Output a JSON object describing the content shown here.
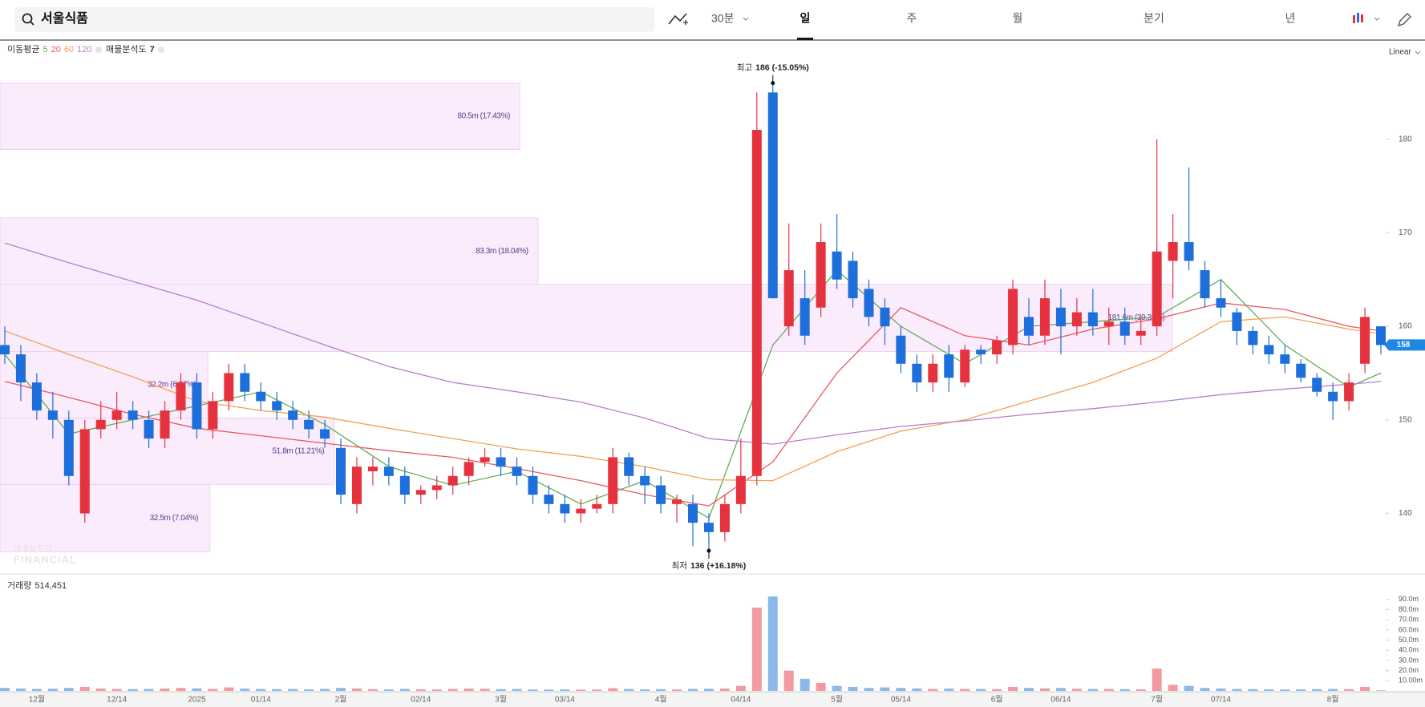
{
  "toolbar": {
    "search": "서울식품",
    "interval": "30분",
    "periods": [
      "일",
      "주",
      "월",
      "분기",
      "년"
    ],
    "active": "일"
  },
  "chart_data": [
    {
      "type": "candlestick",
      "ma_title": "이동평균",
      "profile_title": "매물분석도",
      "profile_count": 7,
      "scale_label": "Linear",
      "up_color": "#e5323e",
      "down_color": "#1e6fd9",
      "ylim": [
        133.7,
        190.6
      ],
      "yticks": [
        140,
        150,
        160,
        170,
        180
      ],
      "open": [
        158,
        157,
        154,
        151,
        150,
        140,
        149,
        150,
        151,
        150,
        148,
        151,
        154,
        149,
        152,
        155,
        153,
        152,
        151,
        150,
        149,
        147,
        141,
        144.5,
        145,
        144,
        142,
        142.5,
        143,
        144,
        145.5,
        146,
        145,
        144,
        142,
        141,
        140,
        140.5,
        141,
        146,
        144,
        143,
        141,
        141,
        139,
        138,
        141,
        144,
        185,
        160,
        163,
        162,
        168,
        167,
        164,
        162,
        159,
        156,
        154,
        157,
        154,
        157.5,
        157,
        158,
        161,
        159,
        162,
        160,
        161.5,
        160,
        160.5,
        159,
        160,
        167,
        169,
        166,
        163,
        161.5,
        159.5,
        158,
        157,
        156,
        154.5,
        153,
        152,
        156,
        160
      ],
      "high": [
        160,
        158,
        155,
        153,
        151,
        150,
        152,
        153,
        152,
        151,
        152,
        155,
        155,
        153,
        156,
        156,
        154,
        153,
        152,
        151,
        150,
        148,
        146,
        146,
        146,
        145,
        143,
        144,
        145,
        146,
        147,
        147,
        146,
        145,
        143,
        142,
        141.5,
        142,
        147,
        146.5,
        145,
        144,
        142,
        142,
        140,
        142,
        148,
        185,
        186,
        171,
        166,
        171,
        172,
        168,
        165,
        163,
        160,
        157,
        157,
        158,
        158,
        158,
        159,
        165,
        163,
        165,
        164,
        163,
        164,
        162,
        162,
        161,
        180,
        172,
        177,
        167,
        165,
        162,
        160,
        159,
        158,
        156.5,
        155,
        154,
        155,
        162,
        160
      ],
      "low": [
        156,
        152,
        150,
        148,
        143,
        139,
        148,
        149,
        149,
        147,
        147,
        150,
        148,
        148,
        151,
        152,
        151,
        150,
        149,
        148,
        147,
        141,
        140,
        143,
        143,
        141,
        141,
        141.5,
        142,
        143,
        145,
        144,
        143,
        141,
        140,
        139,
        139,
        140,
        140,
        143,
        141,
        140,
        139,
        136.5,
        136,
        137,
        140,
        143,
        163,
        159,
        158,
        161,
        164,
        162,
        160,
        158,
        155,
        153,
        153,
        153,
        153.5,
        156,
        156,
        157,
        158,
        158,
        157,
        159,
        159,
        158,
        158,
        158,
        159,
        163,
        166,
        162,
        161,
        158,
        157,
        156,
        155,
        154,
        152.5,
        150,
        151,
        155,
        157
      ],
      "close": [
        157,
        154,
        151,
        150,
        144,
        149,
        150,
        151,
        150,
        148,
        151,
        154,
        149,
        152,
        155,
        153,
        152,
        151,
        150,
        149,
        148,
        142,
        145,
        145,
        144,
        142,
        142.5,
        143,
        144,
        145.5,
        146,
        145,
        144,
        142,
        141,
        140,
        140.5,
        141,
        146,
        144,
        143,
        141,
        141.5,
        139,
        138,
        141,
        144,
        181,
        163,
        166,
        159,
        169,
        165,
        163,
        161,
        160,
        156,
        154,
        156,
        154.5,
        157.5,
        157,
        158.5,
        164,
        159,
        163,
        160,
        161.5,
        160,
        160.5,
        159,
        159.5,
        168,
        169,
        167,
        163,
        162,
        159.5,
        158,
        157,
        156,
        154.5,
        153,
        152,
        154,
        161,
        158
      ],
      "series": [
        {
          "name": "5",
          "color": "#5fae55",
          "x": [
            0,
            4,
            8,
            12,
            16,
            20,
            24,
            28,
            32,
            36,
            40,
            44,
            48,
            52,
            56,
            60,
            64,
            68,
            72,
            76,
            80,
            84,
            86
          ],
          "values": [
            157.0,
            148.5,
            150.0,
            151.5,
            153.0,
            149.5,
            145.0,
            143.0,
            144.5,
            141.0,
            143.5,
            139.5,
            158.0,
            166.0,
            160.0,
            156.0,
            160.0,
            160.5,
            161.0,
            165.0,
            158.0,
            153.5,
            155.0
          ]
        },
        {
          "name": "20",
          "color": "#e8595f",
          "x": [
            0,
            4,
            8,
            12,
            16,
            20,
            24,
            28,
            32,
            36,
            40,
            44,
            48,
            52,
            56,
            60,
            64,
            68,
            72,
            76,
            80,
            84,
            86
          ],
          "values": [
            154.1,
            152.4,
            150.6,
            149.1,
            148.3,
            147.5,
            146.7,
            146.0,
            144.8,
            143.5,
            142.0,
            140.8,
            145.5,
            155.0,
            162.0,
            159.0,
            158.0,
            159.7,
            160.8,
            162.5,
            161.8,
            160.0,
            159.5
          ]
        },
        {
          "name": "60",
          "color": "#f2a154",
          "x": [
            0,
            4,
            8,
            12,
            16,
            20,
            24,
            28,
            32,
            36,
            40,
            44,
            48,
            52,
            56,
            60,
            64,
            68,
            72,
            76,
            80,
            84,
            86
          ],
          "values": [
            159.5,
            157.0,
            154.6,
            152.0,
            151.0,
            150.3,
            149.1,
            148.0,
            146.9,
            146.1,
            145.0,
            143.6,
            143.5,
            146.6,
            148.8,
            150.0,
            152.0,
            154.0,
            156.6,
            160.5,
            161.0,
            159.7,
            159.2
          ]
        },
        {
          "name": "120",
          "color": "#b57fd0",
          "x": [
            0,
            4,
            8,
            12,
            16,
            20,
            24,
            28,
            32,
            36,
            40,
            44,
            48,
            52,
            56,
            60,
            64,
            68,
            72,
            76,
            80,
            84,
            86
          ],
          "values": [
            168.9,
            166.8,
            164.8,
            162.8,
            160.4,
            158.0,
            155.7,
            154.0,
            153.0,
            151.9,
            150.2,
            148.0,
            147.4,
            148.4,
            149.3,
            149.9,
            150.6,
            151.2,
            151.9,
            152.7,
            153.3,
            153.8,
            154.1
          ]
        }
      ],
      "bands": [
        {
          "low": 178.9,
          "high": 186.0,
          "value": 17.43,
          "label": "80.5m (17.43%)"
        },
        {
          "low": 164.5,
          "high": 171.6,
          "value": 18.04,
          "label": "83.3m (18.04%)"
        },
        {
          "low": 157.3,
          "high": 164.5,
          "value": 39.31,
          "label": "181.6m (39.31%)"
        },
        {
          "low": 150.2,
          "high": 157.3,
          "value": 6.97,
          "label": "32.2m (6.97%)"
        },
        {
          "low": 143.1,
          "high": 150.2,
          "value": 11.21,
          "label": "51.8m (11.21%)"
        },
        {
          "low": 135.9,
          "high": 143.1,
          "value": 7.04,
          "label": "32.5m (7.04%)"
        }
      ],
      "annotations": {
        "high": {
          "label": "최고",
          "value": 186,
          "change": "(-15.05%)"
        },
        "low": {
          "label": "최저",
          "value": 136,
          "change": "(+16.18%)"
        }
      },
      "watermark": [
        "NAVER",
        "FINANCIAL"
      ]
    },
    {
      "type": "bar",
      "title": "거래량",
      "current_label": "514,451",
      "up_color": "#f19a9f",
      "down_color": "#8ab9ea",
      "categories": [
        null,
        null,
        "12월",
        null,
        null,
        null,
        null,
        "12/14",
        null,
        null,
        null,
        null,
        "2025",
        null,
        null,
        null,
        "01/14",
        null,
        null,
        null,
        null,
        "2월",
        null,
        null,
        null,
        null,
        "02/14",
        null,
        null,
        null,
        null,
        "3월",
        null,
        null,
        null,
        "03/14",
        null,
        null,
        null,
        null,
        null,
        "4월",
        null,
        null,
        null,
        null,
        "04/14",
        null,
        null,
        null,
        null,
        null,
        "5월",
        null,
        null,
        null,
        "05/14",
        null,
        null,
        null,
        null,
        null,
        "6월",
        null,
        null,
        null,
        "06/14",
        null,
        null,
        null,
        null,
        null,
        "7월",
        null,
        null,
        null,
        "07/14",
        null,
        null,
        null,
        null,
        null,
        null,
        "8월",
        null,
        null,
        null
      ],
      "values": [
        3000000,
        2500000,
        2000000,
        2200000,
        3000000,
        4000000,
        2500000,
        2000000,
        1800000,
        2000000,
        2400000,
        3000000,
        2600000,
        2000000,
        3500000,
        2400000,
        2000000,
        1800000,
        2000000,
        1600000,
        2000000,
        3000000,
        2500000,
        1800000,
        1500000,
        2000000,
        1600000,
        1500000,
        2000000,
        2400000,
        2200000,
        1800000,
        2000000,
        1500000,
        1400000,
        1500000,
        1300000,
        1400000,
        2800000,
        2000000,
        1600000,
        1800000,
        1500000,
        2000000,
        2200000,
        2400000,
        5000000,
        82000000,
        93000000,
        20000000,
        12000000,
        8000000,
        5000000,
        4000000,
        3000000,
        3500000,
        3000000,
        2500000,
        2000000,
        2400000,
        2000000,
        2000000,
        1800000,
        4000000,
        3000000,
        2600000,
        3000000,
        2200000,
        2000000,
        2000000,
        1800000,
        1600000,
        22000000,
        6000000,
        5000000,
        3000000,
        2500000,
        2000000,
        1800000,
        1600000,
        1500000,
        1600000,
        1800000,
        2000000,
        1800000,
        4000000,
        514451
      ],
      "ylim": [
        0,
        108000000
      ],
      "yticks": [
        {
          "value": 10000000,
          "label": "10.00m"
        },
        {
          "value": 20000000,
          "label": "20.0m"
        },
        {
          "value": 30000000,
          "label": "30.0m"
        },
        {
          "value": 40000000,
          "label": "40.0m"
        },
        {
          "value": 50000000,
          "label": "50.0m"
        },
        {
          "value": 60000000,
          "label": "60.0m"
        },
        {
          "value": 70000000,
          "label": "70.0m"
        },
        {
          "value": 80000000,
          "label": "80.0m"
        },
        {
          "value": 90000000,
          "label": "90.0m"
        }
      ]
    }
  ]
}
